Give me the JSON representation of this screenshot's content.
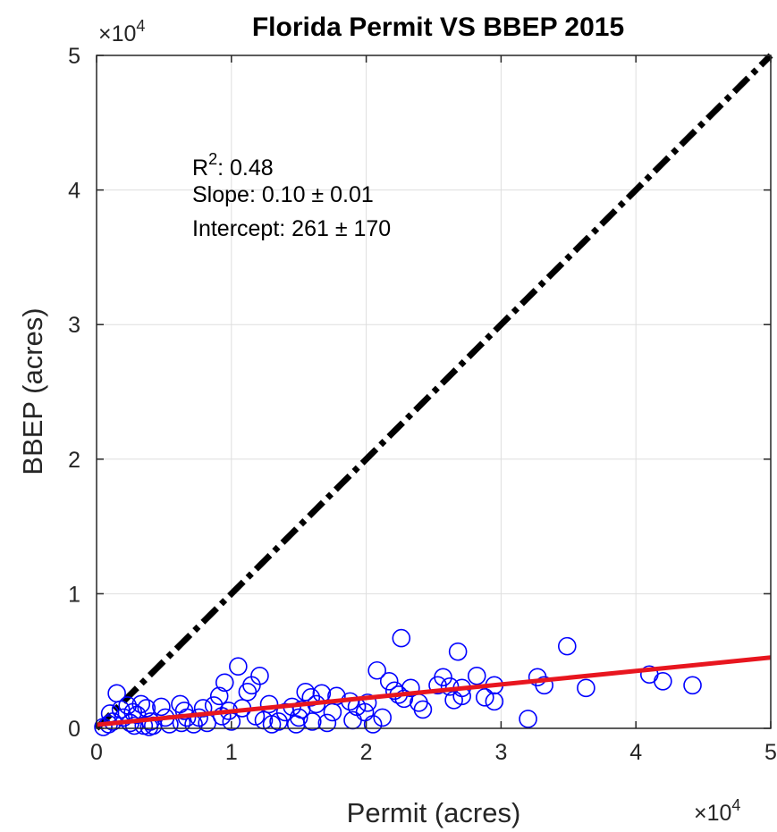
{
  "chart_data": {
    "type": "scatter",
    "title": "Florida Permit VS BBEP 2015",
    "xlabel": "Permit (acres)",
    "ylabel": "BBEP (acres)",
    "xlim": [
      0,
      50000
    ],
    "ylim": [
      0,
      50000
    ],
    "x_ticks": [
      "0",
      "1",
      "2",
      "3",
      "4",
      "5"
    ],
    "y_ticks": [
      "0",
      "1",
      "2",
      "3",
      "4",
      "5"
    ],
    "x_multiplier": "×10",
    "y_multiplier": "×10",
    "multiplier_exponent": "4",
    "grid": true,
    "marker_color": "#0000ff",
    "annotation": {
      "r2_prefix": "R",
      "r2_sup": "2",
      "r2_value": ": 0.48",
      "slope": "Slope: 0.10 ± 0.01",
      "intercept": "Intercept:  261 ± 170"
    },
    "one_to_one_line": {
      "x": [
        0,
        50000
      ],
      "y": [
        0,
        50000
      ],
      "color": "#000000",
      "style": "dash-dot"
    },
    "fit_line": {
      "x": [
        0,
        50000
      ],
      "y": [
        261,
        5261
      ],
      "color": "#e8161f"
    },
    "points": [
      [
        1500,
        2600
      ],
      [
        1800,
        1400
      ],
      [
        1200,
        500
      ],
      [
        900,
        300
      ],
      [
        500,
        100
      ],
      [
        2500,
        400
      ],
      [
        3000,
        1000
      ],
      [
        3300,
        1800
      ],
      [
        3700,
        1500
      ],
      [
        4000,
        500
      ],
      [
        4200,
        200
      ],
      [
        2000,
        800
      ],
      [
        2700,
        1200
      ],
      [
        3500,
        200
      ],
      [
        4800,
        1600
      ],
      [
        5100,
        800
      ],
      [
        6200,
        1800
      ],
      [
        6500,
        1300
      ],
      [
        6300,
        400
      ],
      [
        6700,
        800
      ],
      [
        7200,
        300
      ],
      [
        8200,
        400
      ],
      [
        8700,
        1700
      ],
      [
        9100,
        2400
      ],
      [
        9500,
        3400
      ],
      [
        9800,
        1300
      ],
      [
        9300,
        900
      ],
      [
        10000,
        500
      ],
      [
        10500,
        4600
      ],
      [
        10800,
        1500
      ],
      [
        11200,
        2700
      ],
      [
        11500,
        3200
      ],
      [
        12100,
        3900
      ],
      [
        12400,
        600
      ],
      [
        13000,
        300
      ],
      [
        13500,
        500
      ],
      [
        14000,
        1200
      ],
      [
        14500,
        1600
      ],
      [
        15200,
        1400
      ],
      [
        15500,
        2700
      ],
      [
        15900,
        2300
      ],
      [
        16300,
        1800
      ],
      [
        16700,
        2600
      ],
      [
        17100,
        400
      ],
      [
        17800,
        2400
      ],
      [
        17500,
        1200
      ],
      [
        18800,
        2000
      ],
      [
        19300,
        1600
      ],
      [
        19900,
        1200
      ],
      [
        20500,
        300
      ],
      [
        20800,
        4300
      ],
      [
        21200,
        800
      ],
      [
        21700,
        3500
      ],
      [
        22100,
        2800
      ],
      [
        22600,
        6700
      ],
      [
        22800,
        2200
      ],
      [
        23300,
        3000
      ],
      [
        23900,
        1900
      ],
      [
        25300,
        3200
      ],
      [
        25700,
        3800
      ],
      [
        26200,
        3100
      ],
      [
        26800,
        5700
      ],
      [
        27100,
        3000
      ],
      [
        27100,
        2400
      ],
      [
        28200,
        3900
      ],
      [
        28800,
        2300
      ],
      [
        29500,
        3200
      ],
      [
        29500,
        2000
      ],
      [
        32000,
        700
      ],
      [
        32700,
        3800
      ],
      [
        33200,
        3200
      ],
      [
        34900,
        6100
      ],
      [
        36300,
        3000
      ],
      [
        41000,
        4000
      ],
      [
        42000,
        3500
      ],
      [
        44200,
        3200
      ],
      [
        2800,
        200
      ],
      [
        3900,
        100
      ],
      [
        5400,
        300
      ],
      [
        7600,
        800
      ],
      [
        11800,
        900
      ],
      [
        14800,
        300
      ],
      [
        16000,
        500
      ],
      [
        19000,
        600
      ],
      [
        24200,
        1400
      ],
      [
        26500,
        2100
      ],
      [
        1000,
        1100
      ],
      [
        2300,
        1700
      ],
      [
        7900,
        1500
      ],
      [
        12800,
        1800
      ],
      [
        15000,
        800
      ],
      [
        20100,
        1900
      ],
      [
        22400,
        2500
      ]
    ]
  }
}
